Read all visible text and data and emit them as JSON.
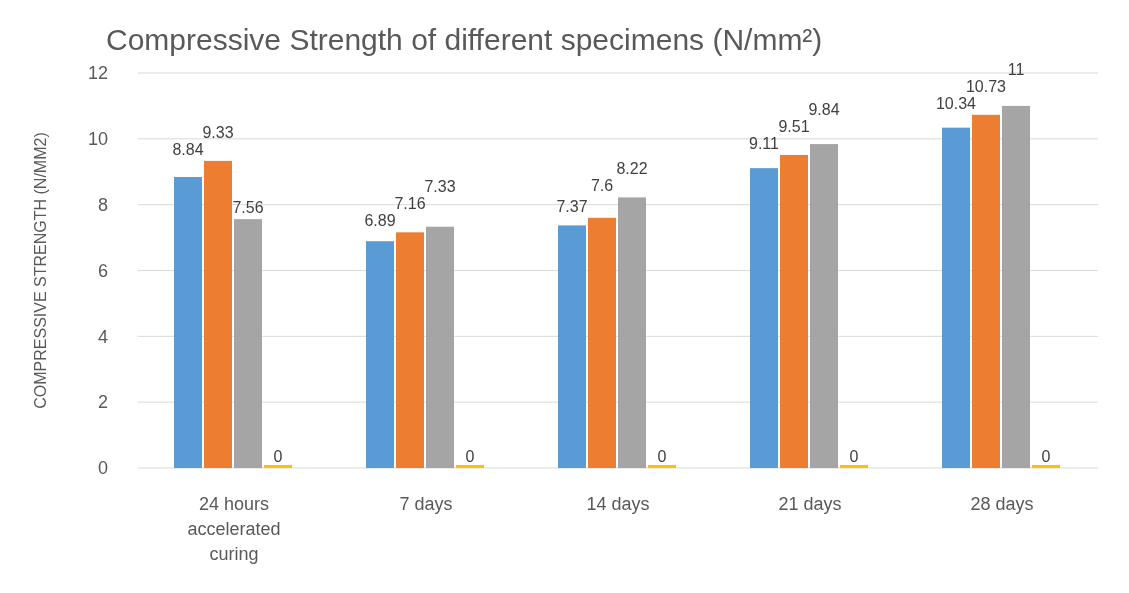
{
  "chart_data": {
    "type": "bar",
    "title": "Compressive Strength of different specimens (N/mm²)",
    "ylabel": "COMPRESSIVE STRENGTH (N/MM2)",
    "categories": [
      "24 hours accelerated curing",
      "7 days",
      "14 days",
      "21 days",
      "28 days"
    ],
    "series": [
      {
        "color": "#5b9bd5",
        "values": [
          8.84,
          6.89,
          7.37,
          9.11,
          10.34
        ]
      },
      {
        "color": "#ed7d31",
        "values": [
          9.33,
          7.16,
          7.6,
          9.51,
          10.73
        ]
      },
      {
        "color": "#a5a5a5",
        "values": [
          7.56,
          7.33,
          8.22,
          9.84,
          11
        ]
      },
      {
        "color": "#ffc000",
        "values": [
          0,
          0,
          0,
          0,
          0
        ]
      }
    ],
    "ylim": [
      0,
      12
    ],
    "yticks": [
      0,
      2,
      4,
      6,
      8,
      10,
      12
    ],
    "grid": "y",
    "data_labels": true
  }
}
